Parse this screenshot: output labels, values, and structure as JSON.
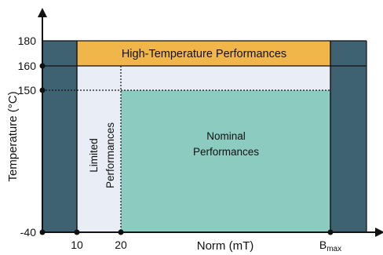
{
  "diagram": {
    "y_axis": {
      "title": "Temperature (°C)",
      "ticks": [
        "180",
        "160",
        "150",
        "-40"
      ]
    },
    "x_axis": {
      "title": "Norm (mT)",
      "ticks": [
        "10",
        "20"
      ],
      "bmax": {
        "base": "B",
        "subscript": "max"
      }
    },
    "regions": {
      "high_temperature": "High-Temperature Performances",
      "limited": [
        "Limited",
        "Performances"
      ],
      "nominal": [
        "Nominal",
        "Performances"
      ]
    },
    "colors": {
      "dark_band": "#3f6273",
      "high_temperature": "#f0b64a",
      "light_region": "#e9edf5",
      "nominal": "#8ccbbf",
      "axis": "#111111"
    }
  }
}
